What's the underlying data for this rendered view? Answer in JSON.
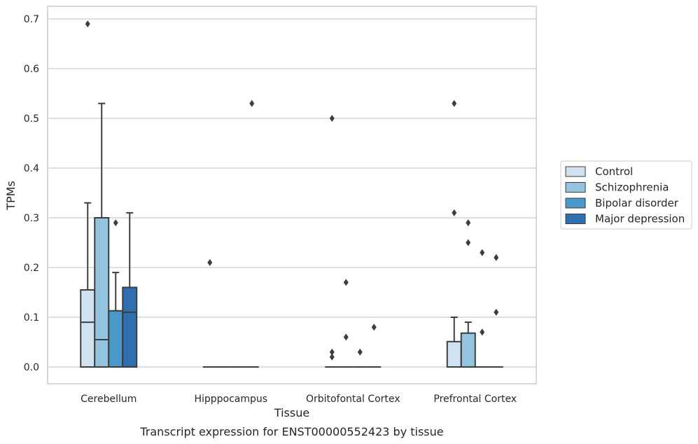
{
  "chart_data": {
    "type": "box",
    "xlabel": "Tissue",
    "ylabel": "TPMs",
    "caption": "Transcript expression for ENST00000552423 by tissue",
    "ylim": [
      -0.035,
      0.725
    ],
    "yticks": [
      "0.0",
      "0.1",
      "0.2",
      "0.3",
      "0.4",
      "0.5",
      "0.6",
      "0.7"
    ],
    "grid": "horizontal",
    "legend_position": "right",
    "categories": [
      "Cerebellum",
      "Hipppocampus",
      "Orbitofontal Cortex",
      "Prefrontal Cortex"
    ],
    "series": [
      {
        "name": "Control",
        "color": "#d0e1f2",
        "boxes": [
          {
            "q1": 0.0,
            "median": 0.09,
            "q3": 0.155,
            "whisker_low": 0.0,
            "whisker_high": 0.33,
            "outliers": [
              0.69
            ]
          },
          {
            "q1": 0.0,
            "median": 0.0,
            "q3": 0.0,
            "whisker_low": 0.0,
            "whisker_high": 0.0,
            "outliers": [
              0.21
            ]
          },
          {
            "q1": 0.0,
            "median": 0.0,
            "q3": 0.0,
            "whisker_low": 0.0,
            "whisker_high": 0.0,
            "outliers": [
              0.5,
              0.03,
              0.02
            ]
          },
          {
            "q1": 0.0,
            "median": 0.0,
            "q3": 0.051,
            "whisker_low": 0.0,
            "whisker_high": 0.1,
            "outliers": [
              0.53,
              0.31
            ]
          }
        ]
      },
      {
        "name": "Schizophrenia",
        "color": "#94c4df",
        "boxes": [
          {
            "q1": 0.0,
            "median": 0.055,
            "q3": 0.3,
            "whisker_low": 0.0,
            "whisker_high": 0.53,
            "outliers": []
          },
          {
            "q1": 0.0,
            "median": 0.0,
            "q3": 0.0,
            "whisker_low": 0.0,
            "whisker_high": 0.0,
            "outliers": []
          },
          {
            "q1": 0.0,
            "median": 0.0,
            "q3": 0.0,
            "whisker_low": 0.0,
            "whisker_high": 0.0,
            "outliers": [
              0.17,
              0.06
            ]
          },
          {
            "q1": 0.0,
            "median": 0.0,
            "q3": 0.068,
            "whisker_low": 0.0,
            "whisker_high": 0.09,
            "outliers": [
              0.29,
              0.25
            ]
          }
        ]
      },
      {
        "name": "Bipolar disorder",
        "color": "#4a98c9",
        "boxes": [
          {
            "q1": 0.0,
            "median": 0.0,
            "q3": 0.113,
            "whisker_low": 0.0,
            "whisker_high": 0.19,
            "outliers": [
              0.29
            ]
          },
          {
            "q1": 0.0,
            "median": 0.0,
            "q3": 0.0,
            "whisker_low": 0.0,
            "whisker_high": 0.0,
            "outliers": []
          },
          {
            "q1": 0.0,
            "median": 0.0,
            "q3": 0.0,
            "whisker_low": 0.0,
            "whisker_high": 0.0,
            "outliers": [
              0.03
            ]
          },
          {
            "q1": 0.0,
            "median": 0.0,
            "q3": 0.0,
            "whisker_low": 0.0,
            "whisker_high": 0.0,
            "outliers": [
              0.23,
              0.07
            ]
          }
        ]
      },
      {
        "name": "Major depression",
        "color": "#2e6fb0",
        "boxes": [
          {
            "q1": 0.0,
            "median": 0.11,
            "q3": 0.16,
            "whisker_low": 0.0,
            "whisker_high": 0.31,
            "outliers": []
          },
          {
            "q1": 0.0,
            "median": 0.0,
            "q3": 0.0,
            "whisker_low": 0.0,
            "whisker_high": 0.0,
            "outliers": [
              0.53
            ]
          },
          {
            "q1": 0.0,
            "median": 0.0,
            "q3": 0.0,
            "whisker_low": 0.0,
            "whisker_high": 0.0,
            "outliers": [
              0.08
            ]
          },
          {
            "q1": 0.0,
            "median": 0.0,
            "q3": 0.0,
            "whisker_low": 0.0,
            "whisker_high": 0.0,
            "outliers": [
              0.22,
              0.11
            ]
          }
        ]
      }
    ]
  }
}
